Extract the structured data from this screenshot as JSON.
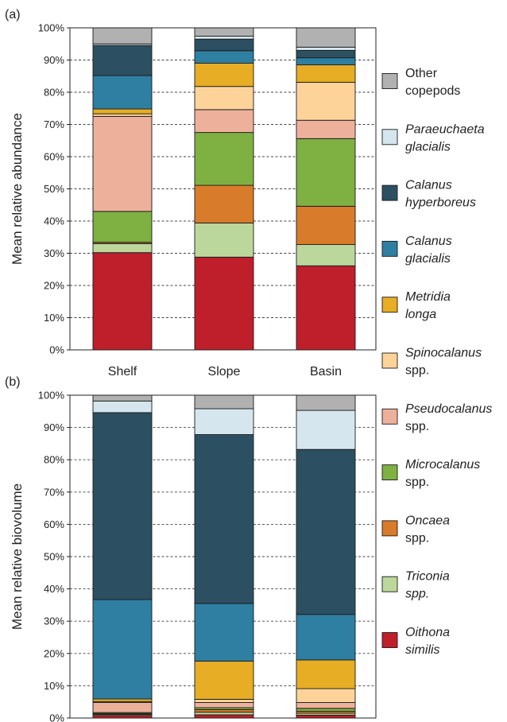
{
  "colors": {
    "Other copepods": "#b1b1b1",
    "Paraeuchaeta glacialis": "#d5e6ee",
    "Calanus hyperboreus": "#2c5062",
    "Calanus glacialis": "#2e7fa1",
    "Metridia longa": "#e6ad25",
    "Spinocalanus spp.": "#fdd39a",
    "Pseudocalanus spp.": "#edb19b",
    "Microcalanus spp.": "#7fb042",
    "Oncaea spp.": "#d87b2a",
    "Triconia spp.": "#bcd79c",
    "Oithona similis": "#bf1f2b"
  },
  "legend": [
    {
      "key": "Other copepods",
      "lines": [
        "Other",
        "copepods"
      ],
      "italic": [
        false,
        false
      ]
    },
    {
      "key": "Paraeuchaeta glacialis",
      "lines": [
        "Paraeuchaeta",
        "glacialis"
      ],
      "italic": [
        true,
        true
      ]
    },
    {
      "key": "Calanus hyperboreus",
      "lines": [
        "Calanus",
        "hyperboreus"
      ],
      "italic": [
        true,
        true
      ]
    },
    {
      "key": "Calanus glacialis",
      "lines": [
        "Calanus",
        "glacialis"
      ],
      "italic": [
        true,
        true
      ]
    },
    {
      "key": "Metridia longa",
      "lines": [
        "Metridia",
        "longa"
      ],
      "italic": [
        true,
        true
      ]
    },
    {
      "key": "Spinocalanus spp.",
      "lines": [
        "Spinocalanus",
        "spp."
      ],
      "italic": [
        true,
        false
      ]
    },
    {
      "key": "Pseudocalanus spp.",
      "lines": [
        "Pseudocalanus",
        "spp."
      ],
      "italic": [
        true,
        false
      ]
    },
    {
      "key": "Microcalanus spp.",
      "lines": [
        "Microcalanus",
        "spp."
      ],
      "italic": [
        true,
        false
      ]
    },
    {
      "key": "Oncaea spp.",
      "lines": [
        "Oncaea",
        "spp."
      ],
      "italic": [
        true,
        false
      ]
    },
    {
      "key": "Triconia spp.",
      "lines": [
        "Triconia",
        "spp."
      ],
      "italic": [
        true,
        true
      ]
    },
    {
      "key": "Oithona similis",
      "lines": [
        "Oithona",
        "similis"
      ],
      "italic": [
        true,
        true
      ]
    }
  ],
  "chart_data": [
    {
      "type": "bar",
      "stacked": true,
      "panel_label": "(a)",
      "ylabel": "Mean relative abundance",
      "ylim": [
        0,
        100
      ],
      "yticks": [
        "0%",
        "10%",
        "20%",
        "30%",
        "40%",
        "50%",
        "60%",
        "70%",
        "80%",
        "90%",
        "100%"
      ],
      "categories": [
        "Shelf",
        "Slope",
        "Basin"
      ],
      "series": [
        {
          "name": "Oithona similis",
          "values": [
            30.2,
            28.8,
            26.1
          ]
        },
        {
          "name": "Triconia spp.",
          "values": [
            2.8,
            10.6,
            6.6
          ]
        },
        {
          "name": "Oncaea spp.",
          "values": [
            0.4,
            11.7,
            11.9
          ]
        },
        {
          "name": "Microcalanus spp.",
          "values": [
            9.6,
            16.4,
            21.0
          ]
        },
        {
          "name": "Pseudocalanus spp.",
          "values": [
            29.5,
            7.1,
            5.7
          ]
        },
        {
          "name": "Spinocalanus spp.",
          "values": [
            0.8,
            7.2,
            11.8
          ]
        },
        {
          "name": "Metridia longa",
          "values": [
            1.5,
            7.2,
            5.4
          ]
        },
        {
          "name": "Calanus glacialis",
          "values": [
            10.4,
            3.9,
            2.2
          ]
        },
        {
          "name": "Calanus hyperboreus",
          "values": [
            9.3,
            3.6,
            2.3
          ]
        },
        {
          "name": "Paraeuchaeta glacialis",
          "values": [
            0.5,
            0.9,
            1.0
          ]
        },
        {
          "name": "Other copepods",
          "values": [
            5.0,
            2.6,
            6.0
          ]
        }
      ]
    },
    {
      "type": "bar",
      "stacked": true,
      "panel_label": "(b)",
      "ylabel": "Mean relative biovolume",
      "ylim": [
        0,
        100
      ],
      "yticks": [
        "0%",
        "10%",
        "20%",
        "30%",
        "40%",
        "50%",
        "60%",
        "70%",
        "80%",
        "90%",
        "100%"
      ],
      "categories": [
        "Shelf",
        "Slope",
        "Basin"
      ],
      "series": [
        {
          "name": "Oithona similis",
          "values": [
            0.8,
            1.0,
            0.9
          ]
        },
        {
          "name": "Triconia spp.",
          "values": [
            0.3,
            0.8,
            0.6
          ]
        },
        {
          "name": "Oncaea spp.",
          "values": [
            0.3,
            0.8,
            0.6
          ]
        },
        {
          "name": "Microcalanus spp.",
          "values": [
            0.3,
            0.6,
            0.9
          ]
        },
        {
          "name": "Pseudocalanus spp.",
          "values": [
            3.1,
            1.6,
            1.8
          ]
        },
        {
          "name": "Spinocalanus spp.",
          "values": [
            0.3,
            1.0,
            4.3
          ]
        },
        {
          "name": "Metridia longa",
          "values": [
            0.8,
            11.8,
            8.9
          ]
        },
        {
          "name": "Calanus glacialis",
          "values": [
            30.8,
            17.9,
            14.1
          ]
        },
        {
          "name": "Calanus hyperboreus",
          "values": [
            57.9,
            52.3,
            51.1
          ]
        },
        {
          "name": "Paraeuchaeta glacialis",
          "values": [
            3.6,
            8.0,
            12.1
          ]
        },
        {
          "name": "Other copepods",
          "values": [
            1.8,
            4.2,
            4.7
          ]
        }
      ]
    }
  ]
}
